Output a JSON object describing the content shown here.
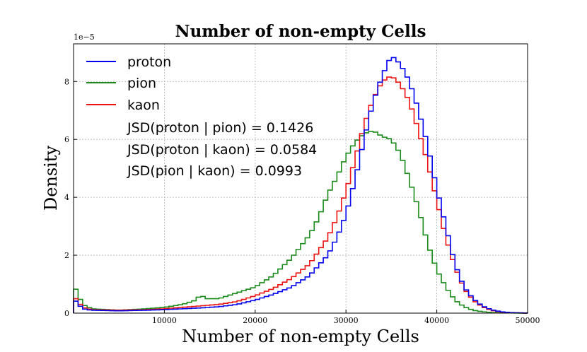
{
  "chart_data": {
    "type": "histogram",
    "title": "Number of non-empty Cells",
    "xlabel": "Number of non-empty Cells",
    "ylabel": "Density",
    "offset_label": "1e−5",
    "xlim": [
      0,
      50000
    ],
    "ylim": [
      0,
      9.3
    ],
    "x_ticks": [
      10000,
      20000,
      30000,
      40000,
      50000
    ],
    "x_tick_labels": [
      "10000",
      "20000",
      "30000",
      "40000",
      "50000"
    ],
    "y_ticks": [
      0,
      2,
      4,
      6,
      8
    ],
    "y_tick_labels": [
      "0",
      "2",
      "4",
      "6",
      "8"
    ],
    "grid": true,
    "legend_position": "top-left",
    "annotations": [
      "JSD(proton | pion) = 0.1426",
      "JSD(proton | kaon) = 0.0584",
      "JSD(pion | kaon) = 0.0993"
    ],
    "series": [
      {
        "name": "proton",
        "color": "#0000ee",
        "x": [
          0,
          1000,
          2000,
          5000,
          8000,
          10000,
          12000,
          14000,
          16000,
          18000,
          20000,
          22000,
          24000,
          26000,
          28000,
          29000,
          30000,
          31000,
          32000,
          33000,
          34000,
          35000,
          36000,
          37000,
          38000,
          39000,
          40000,
          41000,
          42000,
          43000,
          44000,
          45000,
          46000,
          47000,
          48000,
          50000
        ],
        "y": [
          0.5,
          0.15,
          0.1,
          0.08,
          0.1,
          0.12,
          0.15,
          0.18,
          0.22,
          0.3,
          0.45,
          0.65,
          0.9,
          1.3,
          2.0,
          2.6,
          3.4,
          4.6,
          6.0,
          7.3,
          8.2,
          8.9,
          8.6,
          8.0,
          7.0,
          5.8,
          4.3,
          3.0,
          1.7,
          0.9,
          0.5,
          0.25,
          0.12,
          0.05,
          0.02,
          0.0
        ]
      },
      {
        "name": "pion",
        "color": "#1a8a1a",
        "x": [
          0,
          1000,
          2000,
          5000,
          8000,
          10000,
          12000,
          13500,
          14000,
          14500,
          16000,
          18000,
          20000,
          22000,
          24000,
          26000,
          27000,
          28000,
          29000,
          30000,
          31000,
          32000,
          33000,
          34000,
          35000,
          36000,
          37000,
          38000,
          39000,
          40000,
          41000,
          42000,
          43000,
          44000,
          45000,
          46000,
          47000,
          50000
        ],
        "y": [
          1.0,
          0.3,
          0.15,
          0.1,
          0.15,
          0.2,
          0.3,
          0.45,
          0.65,
          0.5,
          0.5,
          0.7,
          0.9,
          1.3,
          1.9,
          2.7,
          3.3,
          4.1,
          4.7,
          5.4,
          5.9,
          6.2,
          6.3,
          6.1,
          6.0,
          5.5,
          4.6,
          3.6,
          2.4,
          1.5,
          0.9,
          0.45,
          0.22,
          0.1,
          0.05,
          0.02,
          0.01,
          0.0
        ]
      },
      {
        "name": "kaon",
        "color": "#ee1111",
        "x": [
          0,
          1000,
          2000,
          5000,
          8000,
          10000,
          12000,
          14000,
          16000,
          18000,
          20000,
          22000,
          24000,
          26000,
          28000,
          29000,
          30000,
          31000,
          32000,
          33000,
          34000,
          35000,
          36000,
          37000,
          38000,
          39000,
          40000,
          41000,
          42000,
          43000,
          44000,
          45000,
          46000,
          47000,
          48000,
          50000
        ],
        "y": [
          0.6,
          0.2,
          0.12,
          0.1,
          0.12,
          0.15,
          0.2,
          0.25,
          0.3,
          0.4,
          0.6,
          0.85,
          1.2,
          1.7,
          2.6,
          3.3,
          4.2,
          5.3,
          6.5,
          7.4,
          8.0,
          8.2,
          7.9,
          7.3,
          6.3,
          5.2,
          3.9,
          2.6,
          1.6,
          0.85,
          0.45,
          0.22,
          0.1,
          0.04,
          0.02,
          0.0
        ]
      }
    ]
  }
}
